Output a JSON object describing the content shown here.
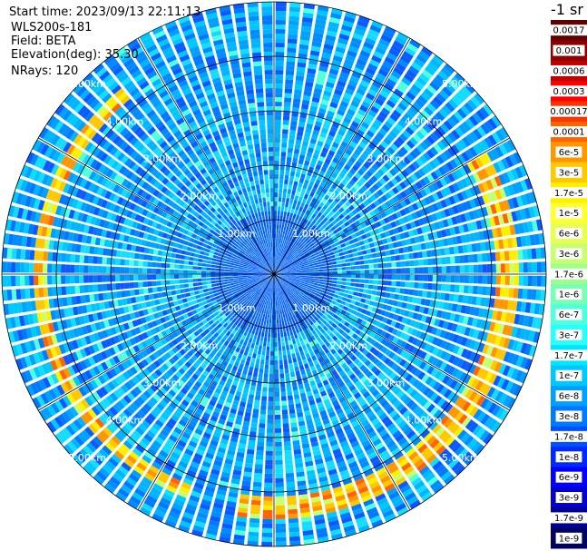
{
  "info": {
    "start_time": "Start time: 2023/09/13 22:11:13",
    "instrument": "WLS200s-181",
    "field": "Field: BETA",
    "elevation": "Elevation(deg): 35.30",
    "nrays": "NRays: 120"
  },
  "chart_data": {
    "type": "heatmap",
    "projection": "polar-ppi",
    "nrays": 120,
    "max_range_km": 5.0,
    "range_rings_km": [
      1.0,
      2.0,
      3.0,
      4.0,
      5.0
    ],
    "ring_labels": [
      "1.00km",
      "2.00km",
      "3.00km",
      "4.00km",
      "5.00km"
    ],
    "spoke_count": 12,
    "colorbar": {
      "unit": "-1 sr",
      "labels": [
        "0.0017",
        "0.001",
        "0.0006",
        "0.0003",
        "0.00017",
        "0.0001",
        "6e-5",
        "3e-5",
        "1.7e-5",
        "1e-5",
        "6e-6",
        "3e-6",
        "1.7e-6",
        "1e-6",
        "6e-7",
        "3e-7",
        "1.7e-7",
        "1e-7",
        "6e-8",
        "3e-8",
        "1.7e-8",
        "1e-8",
        "6e-9",
        "3e-9",
        "1.7e-9",
        "1e-9"
      ],
      "colors": [
        "#600000",
        "#8c0000",
        "#c00000",
        "#ff0000",
        "#ff3200",
        "#ff6400",
        "#ff9600",
        "#ffc800",
        "#fff000",
        "#ffff32",
        "#e6ff50",
        "#c8ff6e",
        "#a0ff8c",
        "#78ffb4",
        "#50ffdc",
        "#28ffff",
        "#00e6ff",
        "#00c8ff",
        "#00a0ff",
        "#0078ff",
        "#0050ff",
        "#0028ff",
        "#0000ff",
        "#0000c8",
        "#000096",
        "#000064"
      ]
    },
    "features": [
      {
        "description": "enhanced backscatter band (3e-6 to 1.7e-5)",
        "range_km": [
          4.15,
          4.45
        ],
        "azimuth_deg": [
          200,
          320
        ]
      },
      {
        "description": "enhanced backscatter band (3e-6 to 1.7e-5)",
        "range_km": [
          4.1,
          4.5
        ],
        "azimuth_deg": [
          60,
          190
        ]
      }
    ]
  }
}
